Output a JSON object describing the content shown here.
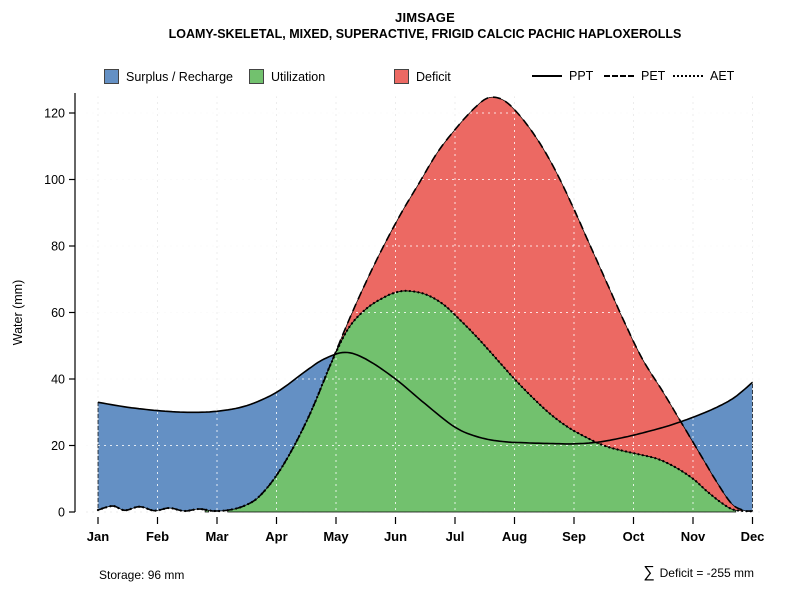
{
  "header": {
    "title": "JIMSAGE",
    "subtitle": "LOAMY-SKELETAL, MIXED, SUPERACTIVE, FRIGID CALCIC PACHIC HAPLOXEROLLS"
  },
  "legend": {
    "areas": [
      {
        "label": "Surplus / Recharge",
        "color": "#6490C4"
      },
      {
        "label": "Utilization",
        "color": "#72C16E"
      },
      {
        "label": "Deficit",
        "color": "#EC6963"
      }
    ],
    "lines": [
      {
        "label": "PPT",
        "style": "solid"
      },
      {
        "label": "PET",
        "style": "dashed"
      },
      {
        "label": "AET",
        "style": "dotted"
      }
    ]
  },
  "footer": {
    "storage": "Storage: 96 mm",
    "sigma": "∑",
    "deficit": "Deficit = -255 mm"
  },
  "chart_data": {
    "type": "area",
    "title": "JIMSAGE",
    "subtitle": "LOAMY-SKELETAL, MIXED, SUPERACTIVE, FRIGID CALCIC PACHIC HAPLOXEROLLS",
    "xlabel": "",
    "ylabel": "Water (mm)",
    "categories": [
      "Jan",
      "Feb",
      "Mar",
      "Apr",
      "May",
      "Jun",
      "Jul",
      "Aug",
      "Sep",
      "Oct",
      "Nov",
      "Dec"
    ],
    "yticks": [
      0,
      20,
      40,
      60,
      80,
      100,
      120
    ],
    "ylim": [
      0,
      126
    ],
    "grid": true,
    "line_color": "#000000",
    "storage_mm": 96,
    "total_deficit_mm": -255,
    "monthly_estimates": {
      "PPT": [
        33,
        30.5,
        30.3,
        36,
        47.5,
        40,
        25.5,
        21,
        20.5,
        23,
        28.5,
        39
      ],
      "PET": [
        0.6,
        0.8,
        0.6,
        11,
        48,
        87,
        115,
        121,
        91,
        51,
        21,
        0
      ],
      "AET": [
        0.6,
        0.8,
        0.6,
        11,
        47.7,
        66,
        59,
        40,
        24.5,
        17.6,
        10,
        0
      ]
    },
    "series": [
      {
        "name": "PPT",
        "style": "solid",
        "points": [
          [
            0,
            33
          ],
          [
            0.5,
            31.5
          ],
          [
            1,
            30.5
          ],
          [
            1.5,
            30
          ],
          [
            2,
            30.3
          ],
          [
            2.5,
            32
          ],
          [
            3,
            36
          ],
          [
            3.5,
            42.5
          ],
          [
            3.8,
            46
          ],
          [
            4.15,
            48
          ],
          [
            4.5,
            46
          ],
          [
            5,
            40
          ],
          [
            5.5,
            32.5
          ],
          [
            6,
            25.5
          ],
          [
            6.4,
            22.5
          ],
          [
            6.8,
            21.2
          ],
          [
            7.2,
            20.8
          ],
          [
            7.6,
            20.6
          ],
          [
            8,
            20.5
          ],
          [
            8.4,
            21
          ],
          [
            8.8,
            22.3
          ],
          [
            9.2,
            24
          ],
          [
            9.6,
            26
          ],
          [
            10,
            28.5
          ],
          [
            10.4,
            31.5
          ],
          [
            10.7,
            34.5
          ],
          [
            11,
            39
          ]
        ]
      },
      {
        "name": "PET",
        "style": "dashed",
        "points": [
          [
            0,
            0.6
          ],
          [
            0.25,
            1.8
          ],
          [
            0.45,
            0.5
          ],
          [
            0.7,
            1.6
          ],
          [
            0.95,
            0.4
          ],
          [
            1.2,
            1.2
          ],
          [
            1.45,
            0.3
          ],
          [
            1.7,
            0.9
          ],
          [
            1.95,
            0.3
          ],
          [
            2.2,
            0.6
          ],
          [
            2.45,
            1.8
          ],
          [
            2.7,
            4.5
          ],
          [
            3,
            11
          ],
          [
            3.3,
            20
          ],
          [
            3.6,
            31
          ],
          [
            3.9,
            44
          ],
          [
            4.2,
            57
          ],
          [
            4.5,
            69
          ],
          [
            4.8,
            80
          ],
          [
            5.1,
            90
          ],
          [
            5.4,
            99
          ],
          [
            5.7,
            108
          ],
          [
            6,
            115
          ],
          [
            6.3,
            121
          ],
          [
            6.55,
            124.5
          ],
          [
            6.8,
            124
          ],
          [
            7.05,
            120
          ],
          [
            7.35,
            113
          ],
          [
            7.65,
            104
          ],
          [
            7.95,
            93
          ],
          [
            8.25,
            81
          ],
          [
            8.55,
            69
          ],
          [
            8.85,
            57
          ],
          [
            9.15,
            46
          ],
          [
            9.5,
            36
          ],
          [
            9.8,
            27
          ],
          [
            10.1,
            18
          ],
          [
            10.4,
            9
          ],
          [
            10.65,
            2.5
          ],
          [
            10.85,
            0.5
          ],
          [
            11,
            0.3
          ]
        ]
      },
      {
        "name": "AET",
        "style": "dotted",
        "points": [
          [
            0,
            0.6
          ],
          [
            0.25,
            1.8
          ],
          [
            0.45,
            0.5
          ],
          [
            0.7,
            1.6
          ],
          [
            0.95,
            0.4
          ],
          [
            1.2,
            1.2
          ],
          [
            1.45,
            0.3
          ],
          [
            1.7,
            0.9
          ],
          [
            1.95,
            0.3
          ],
          [
            2.2,
            0.6
          ],
          [
            2.45,
            1.8
          ],
          [
            2.7,
            4.5
          ],
          [
            3,
            11
          ],
          [
            3.3,
            20
          ],
          [
            3.6,
            31
          ],
          [
            3.9,
            44
          ],
          [
            4.2,
            55
          ],
          [
            4.5,
            61
          ],
          [
            4.8,
            64.5
          ],
          [
            5,
            66
          ],
          [
            5.2,
            66.5
          ],
          [
            5.5,
            65.5
          ],
          [
            5.8,
            62.5
          ],
          [
            6.1,
            57.5
          ],
          [
            6.4,
            52
          ],
          [
            6.7,
            46
          ],
          [
            7,
            40
          ],
          [
            7.3,
            34.5
          ],
          [
            7.6,
            29.5
          ],
          [
            7.9,
            25.5
          ],
          [
            8.2,
            22.5
          ],
          [
            8.5,
            20
          ],
          [
            8.8,
            18.5
          ],
          [
            9.1,
            17.3
          ],
          [
            9.4,
            16
          ],
          [
            9.7,
            13.5
          ],
          [
            10,
            10
          ],
          [
            10.25,
            6
          ],
          [
            10.5,
            2.5
          ],
          [
            10.7,
            0.6
          ],
          [
            11,
            0.2
          ]
        ]
      }
    ]
  }
}
